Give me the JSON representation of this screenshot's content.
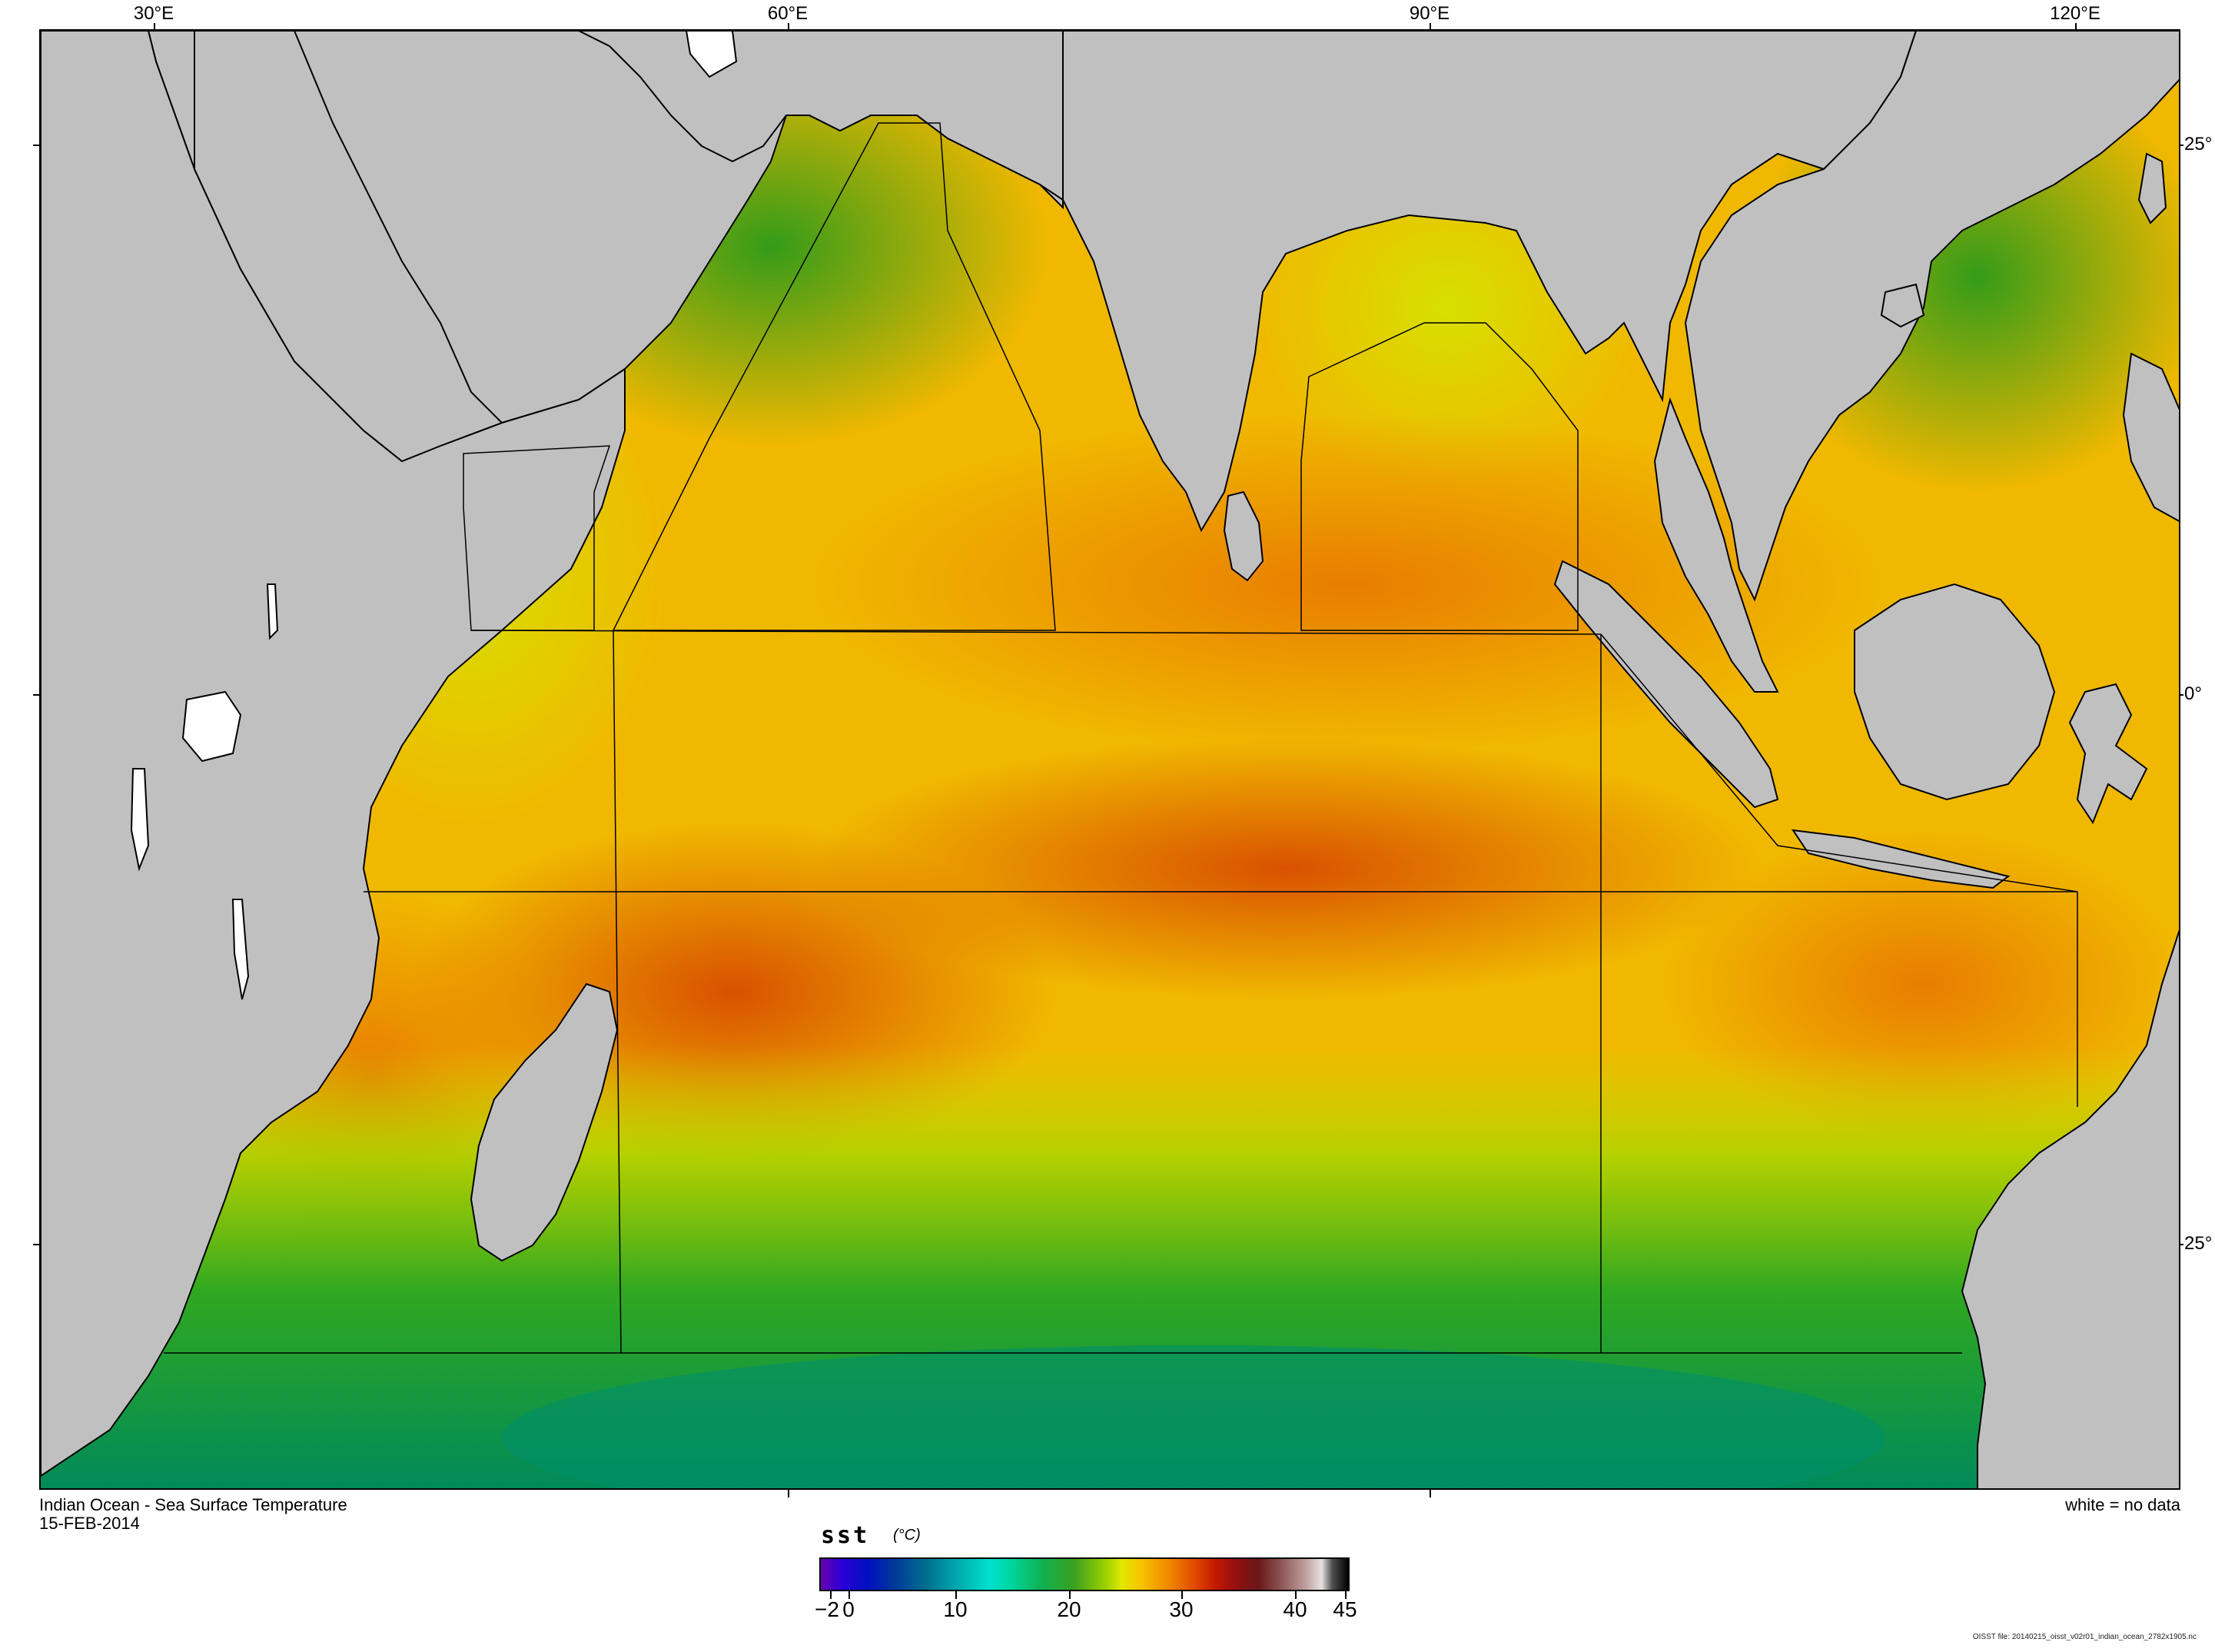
{
  "map": {
    "title": "Indian Ocean - Sea Surface Temperature",
    "date": "15-FEB-2014",
    "no_data_note": "white = no data",
    "longitude_labels": [
      "30°E",
      "60°E",
      "90°E",
      "120°E"
    ],
    "latitude_labels": [
      "25°",
      "0°",
      "25°"
    ],
    "land_color": "#c0c0c0",
    "no_data_color": "#ffffff"
  },
  "colorbar": {
    "variable": "sst",
    "unit": "(°C)",
    "tick_labels": [
      "−2",
      "0",
      "10",
      "20",
      "30",
      "40",
      "45"
    ],
    "range": [
      -2,
      45
    ]
  },
  "file": {
    "label": "OISST file: 20140215_oisst_v02r01_indian_ocean_2782x1905.nc"
  }
}
